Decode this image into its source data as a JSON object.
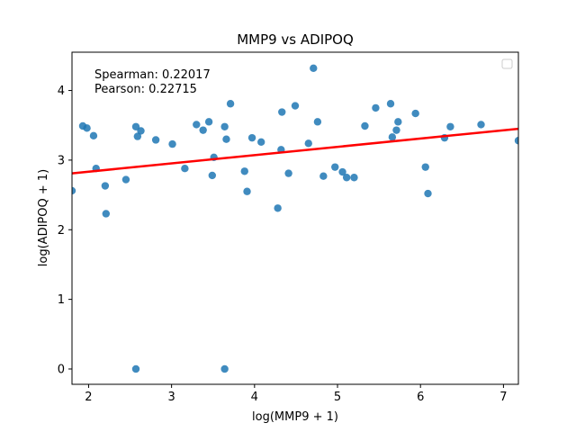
{
  "chart_data": {
    "type": "scatter",
    "title": "MMP9 vs ADIPOQ",
    "xlabel": "log(MMP9 + 1)",
    "ylabel": "log(ADIPOQ + 1)",
    "xlim": [
      1.8,
      7.18
    ],
    "ylim": [
      -0.22,
      4.55
    ],
    "xticks": [
      2,
      3,
      4,
      5,
      6,
      7
    ],
    "yticks": [
      0,
      1,
      2,
      3,
      4
    ],
    "annotations": [
      "Spearman: 0.22017",
      "Pearson: 0.22715"
    ],
    "legend": "top-right (empty)",
    "grid": false,
    "point_color": "#1f77b4",
    "line_color": "#ff0000",
    "regression_line": {
      "x": [
        1.8,
        7.18
      ],
      "y": [
        2.81,
        3.45
      ]
    },
    "points": [
      [
        1.8,
        2.56
      ],
      [
        1.93,
        3.49
      ],
      [
        1.98,
        3.46
      ],
      [
        2.06,
        3.35
      ],
      [
        2.09,
        2.88
      ],
      [
        2.2,
        2.63
      ],
      [
        2.21,
        2.23
      ],
      [
        2.45,
        2.72
      ],
      [
        2.57,
        3.48
      ],
      [
        2.59,
        3.34
      ],
      [
        2.63,
        3.42
      ],
      [
        2.57,
        0.0
      ],
      [
        2.81,
        3.29
      ],
      [
        3.01,
        3.23
      ],
      [
        3.16,
        2.88
      ],
      [
        3.3,
        3.51
      ],
      [
        3.38,
        3.43
      ],
      [
        3.45,
        3.55
      ],
      [
        3.49,
        2.78
      ],
      [
        3.51,
        3.04
      ],
      [
        3.64,
        3.48
      ],
      [
        3.66,
        3.3
      ],
      [
        3.71,
        3.81
      ],
      [
        3.64,
        0.0
      ],
      [
        3.88,
        2.84
      ],
      [
        3.91,
        2.55
      ],
      [
        3.97,
        3.32
      ],
      [
        4.08,
        3.26
      ],
      [
        4.28,
        2.31
      ],
      [
        4.32,
        3.15
      ],
      [
        4.33,
        3.69
      ],
      [
        4.41,
        2.81
      ],
      [
        4.49,
        3.78
      ],
      [
        4.65,
        3.24
      ],
      [
        4.71,
        4.32
      ],
      [
        4.76,
        3.55
      ],
      [
        4.83,
        2.77
      ],
      [
        4.97,
        2.9
      ],
      [
        5.06,
        2.83
      ],
      [
        5.11,
        2.75
      ],
      [
        5.2,
        2.75
      ],
      [
        5.33,
        3.49
      ],
      [
        5.46,
        3.75
      ],
      [
        5.64,
        3.81
      ],
      [
        5.66,
        3.33
      ],
      [
        5.71,
        3.43
      ],
      [
        5.73,
        3.55
      ],
      [
        5.94,
        3.67
      ],
      [
        6.06,
        2.9
      ],
      [
        6.09,
        2.52
      ],
      [
        6.29,
        3.32
      ],
      [
        6.36,
        3.48
      ],
      [
        6.73,
        3.51
      ],
      [
        7.18,
        3.28
      ]
    ]
  }
}
